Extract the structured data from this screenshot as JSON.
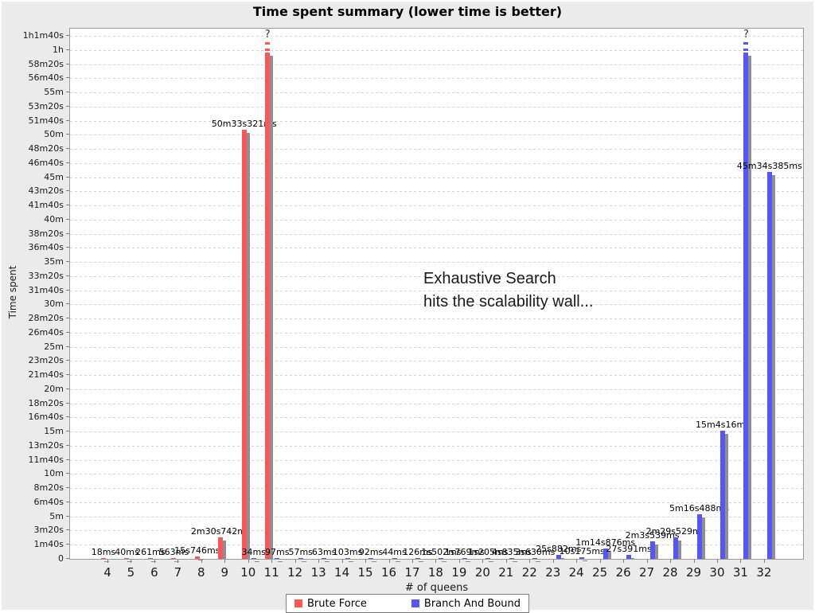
{
  "title": "Time spent summary (lower time is better)",
  "axes": {
    "x_label": "# of queens",
    "y_label": "Time spent"
  },
  "annotation": {
    "line1": "Exhaustive Search",
    "line2": "hits the scalability wall..."
  },
  "legend": {
    "items": [
      {
        "label": "Brute Force",
        "color": "#ff5555"
      },
      {
        "label": "Branch And Bound",
        "color": "#5555ff"
      }
    ]
  },
  "colors": {
    "brute_force": "#ff5555",
    "branch_and_bound": "#5555ff",
    "shadow": "#8f8f8f",
    "background": "#ebebeb",
    "plot_background": "#ffffff",
    "gridline": "#d4d4d4",
    "axis": "#9a9a9a",
    "label_text": "#000000"
  },
  "chart_data": {
    "type": "bar",
    "title": "Time spent summary (lower time is better)",
    "xlabel": "# of queens",
    "ylabel": "Time spent",
    "categories": [
      4,
      5,
      6,
      7,
      8,
      9,
      10,
      11,
      12,
      13,
      14,
      15,
      16,
      17,
      18,
      19,
      20,
      21,
      22,
      23,
      24,
      25,
      26,
      27,
      28,
      29,
      30,
      31,
      32
    ],
    "ylim_seconds": [
      0,
      3700
    ],
    "y_tick_step_seconds": 100,
    "y_tick_labels": [
      "0",
      "1m40s",
      "3m20s",
      "5m",
      "6m40s",
      "8m20s",
      "10m",
      "11m40s",
      "13m20s",
      "15m",
      "16m40s",
      "18m20s",
      "20m",
      "21m40s",
      "23m20s",
      "25m",
      "26m40s",
      "28m20s",
      "30m",
      "31m40s",
      "33m20s",
      "35m",
      "36m40s",
      "38m20s",
      "40m",
      "41m40s",
      "43m20s",
      "45m",
      "46m40s",
      "48m20s",
      "50m",
      "51m40s",
      "53m20s",
      "55m",
      "56m40s",
      "58m20s",
      "1h",
      "1h1m40s"
    ],
    "grid": true,
    "legend_position": "bottom",
    "failed_marker": "?",
    "series": [
      {
        "name": "Brute Force",
        "color_key": "brute_force",
        "points": [
          {
            "q": 4,
            "label": "18ms",
            "seconds": 0.018
          },
          {
            "q": 5,
            "label": "40ms",
            "seconds": 0.04
          },
          {
            "q": 6,
            "label": "261ms",
            "seconds": 0.261
          },
          {
            "q": 7,
            "label": "563ms",
            "seconds": 0.563
          },
          {
            "q": 8,
            "label": "15s746ms",
            "seconds": 15.746
          },
          {
            "q": 9,
            "label": "2m30s742ms",
            "seconds": 150.742
          },
          {
            "q": 10,
            "label": "50m33s321ms",
            "seconds": 3033.321
          },
          {
            "q": 11,
            "label": "?",
            "seconds": null,
            "failed": true
          }
        ]
      },
      {
        "name": "Branch And Bound",
        "color_key": "branch_and_bound",
        "points": [
          {
            "q": 10,
            "label": "34ms",
            "seconds": 0.034
          },
          {
            "q": 11,
            "label": "97ms",
            "seconds": 0.097
          },
          {
            "q": 12,
            "label": "57ms",
            "seconds": 0.057
          },
          {
            "q": 13,
            "label": "63ms",
            "seconds": 0.063
          },
          {
            "q": 14,
            "label": "103ms",
            "seconds": 0.103
          },
          {
            "q": 15,
            "label": "92ms",
            "seconds": 0.092
          },
          {
            "q": 16,
            "label": "44ms",
            "seconds": 0.044
          },
          {
            "q": 17,
            "label": "126ms",
            "seconds": 0.126
          },
          {
            "q": 18,
            "label": "1s502ms",
            "seconds": 1.502
          },
          {
            "q": 19,
            "label": "1s769ms",
            "seconds": 1.769
          },
          {
            "q": 20,
            "label": "1s205ms",
            "seconds": 1.205
          },
          {
            "q": 21,
            "label": "4s835ms",
            "seconds": 4.835
          },
          {
            "q": 22,
            "label": "3s630ms",
            "seconds": 3.63
          },
          {
            "q": 23,
            "label": "25s882ms",
            "seconds": 25.882
          },
          {
            "q": 24,
            "label": "10s175ms",
            "seconds": 10.175
          },
          {
            "q": 25,
            "label": "1m14s876ms",
            "seconds": 74.876
          },
          {
            "q": 26,
            "label": "27s391ms",
            "seconds": 27.391
          },
          {
            "q": 27,
            "label": "2m3s539ms",
            "seconds": 123.539
          },
          {
            "q": 28,
            "label": "2m29s529ms",
            "seconds": 149.529
          },
          {
            "q": 29,
            "label": "5m16s488ms",
            "seconds": 316.488
          },
          {
            "q": 30,
            "label": "15m4s16ms",
            "seconds": 904.016
          },
          {
            "q": 31,
            "label": "?",
            "seconds": null,
            "failed": true
          },
          {
            "q": 32,
            "label": "45m34s385ms",
            "seconds": 2734.385
          }
        ]
      }
    ]
  }
}
